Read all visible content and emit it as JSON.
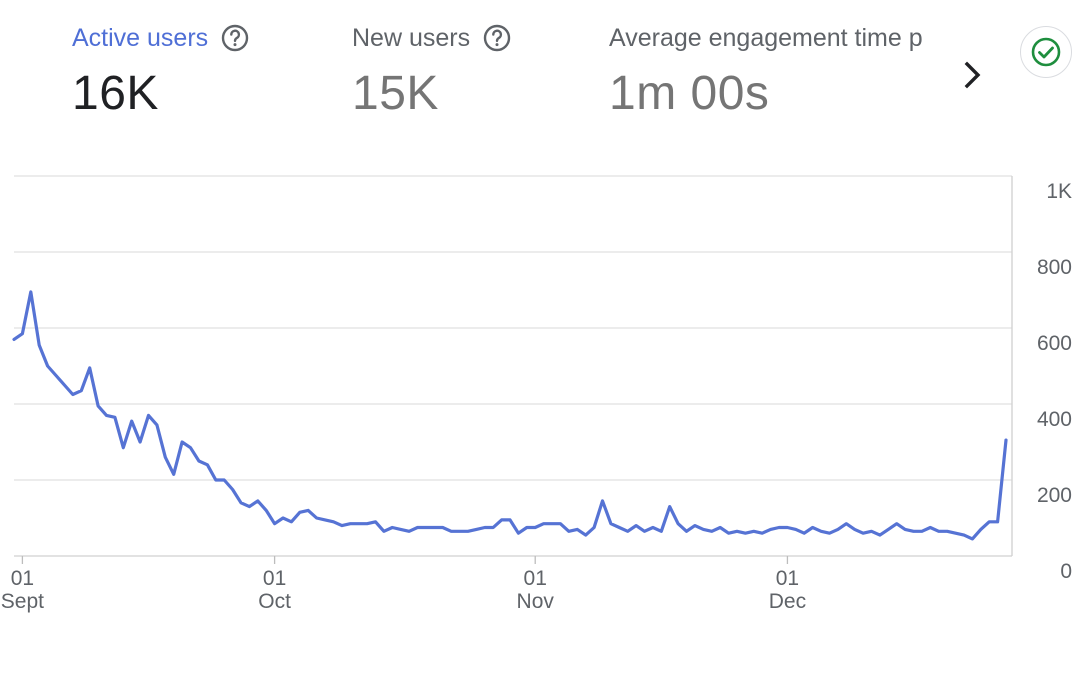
{
  "metrics": [
    {
      "label": "Active users",
      "value": "16K"
    },
    {
      "label": "New users",
      "value": "15K"
    },
    {
      "label": "Average engagement time p",
      "value": "1m 00s"
    }
  ],
  "icons": {
    "help": "help-circle-icon",
    "next": "chevron-right-icon",
    "status": "check-circle-icon"
  },
  "colors": {
    "accent": "#4f6fd6",
    "line": "#5673d4",
    "status": "#1e8e3e",
    "grid": "#e0e0e0"
  },
  "chart_data": {
    "type": "line",
    "title": "",
    "xlabel": "",
    "ylabel": "",
    "ylim": [
      0,
      1000
    ],
    "y_ticks": [
      {
        "value": 1000,
        "label": "1K"
      },
      {
        "value": 800,
        "label": "800"
      },
      {
        "value": 600,
        "label": "600"
      },
      {
        "value": 400,
        "label": "400"
      },
      {
        "value": 200,
        "label": "200"
      },
      {
        "value": 0,
        "label": "0"
      }
    ],
    "x_ticks": [
      {
        "index": 1,
        "day": "01",
        "month": "Sept"
      },
      {
        "index": 31,
        "day": "01",
        "month": "Oct"
      },
      {
        "index": 62,
        "day": "01",
        "month": "Nov"
      },
      {
        "index": 92,
        "day": "01",
        "month": "Dec"
      }
    ],
    "grid": true,
    "series": [
      {
        "name": "",
        "values": [
          570,
          585,
          695,
          555,
          500,
          475,
          450,
          425,
          435,
          495,
          395,
          370,
          365,
          285,
          355,
          300,
          370,
          345,
          260,
          215,
          300,
          285,
          250,
          240,
          200,
          200,
          175,
          140,
          130,
          145,
          120,
          85,
          100,
          90,
          115,
          120,
          100,
          95,
          90,
          80,
          85,
          85,
          85,
          90,
          65,
          75,
          70,
          65,
          75,
          75,
          75,
          75,
          65,
          65,
          65,
          70,
          75,
          75,
          95,
          95,
          60,
          75,
          75,
          85,
          85,
          85,
          65,
          70,
          55,
          75,
          145,
          85,
          75,
          65,
          80,
          65,
          75,
          65,
          130,
          85,
          65,
          80,
          70,
          65,
          75,
          60,
          65,
          60,
          65,
          60,
          70,
          75,
          75,
          70,
          60,
          75,
          65,
          60,
          70,
          85,
          70,
          60,
          65,
          55,
          70,
          85,
          70,
          65,
          65,
          75,
          65,
          65,
          60,
          55,
          45,
          70,
          90,
          90,
          305
        ]
      }
    ]
  }
}
